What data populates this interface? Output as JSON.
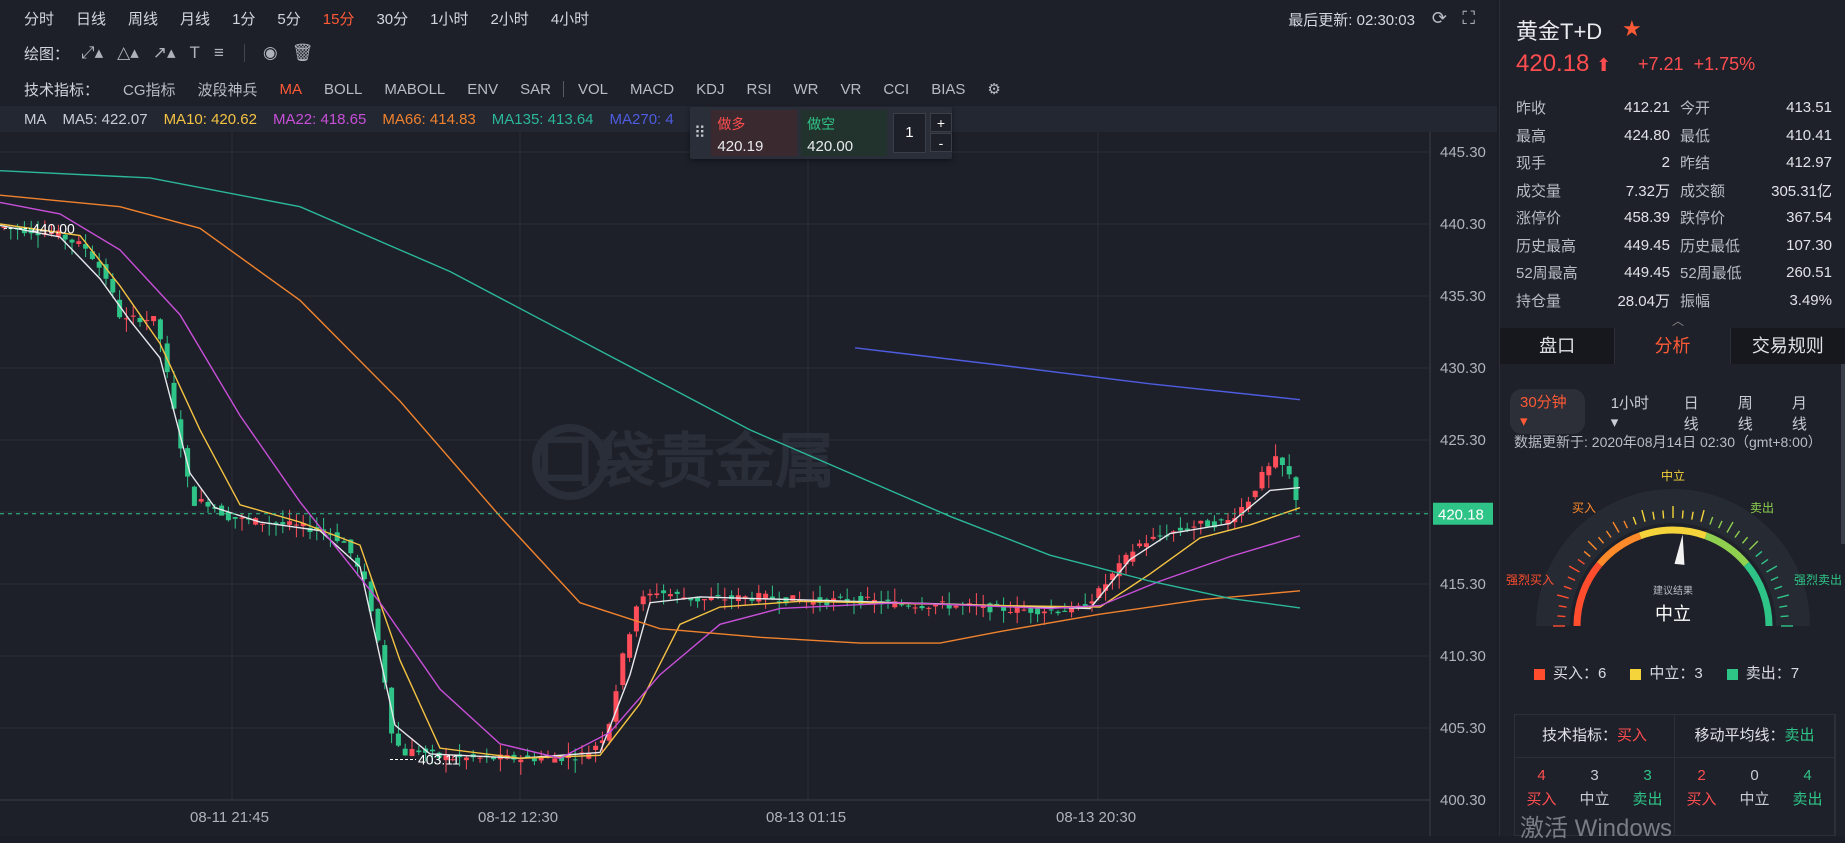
{
  "toolbar": {
    "periods": [
      "分时",
      "日线",
      "周线",
      "月线",
      "1分",
      "5分",
      "15分",
      "30分",
      "1小时",
      "2小时",
      "4小时"
    ],
    "active_period": "15分",
    "last_update_label": "最后更新: 02:30:03",
    "draw_label": "绘图：",
    "indicator_label": "技术指标：",
    "indicators": [
      "CG指标",
      "波段神兵",
      "MA",
      "BOLL",
      "MABOLL",
      "ENV",
      "SAR"
    ],
    "indicators2": [
      "VOL",
      "MACD",
      "KDJ",
      "RSI",
      "WR",
      "VR",
      "CCI",
      "BIAS"
    ],
    "active_indicator": "MA"
  },
  "ma_bar": {
    "label": "MA",
    "items": [
      {
        "text": "MA5: 422.07",
        "color": "#c9ccd4"
      },
      {
        "text": "MA10: 420.62",
        "color": "#f5c343"
      },
      {
        "text": "MA22: 418.65",
        "color": "#c84fd8"
      },
      {
        "text": "MA66: 414.83",
        "color": "#f0822e"
      },
      {
        "text": "MA135: 413.64",
        "color": "#2bb79a"
      },
      {
        "text": "MA270: 4",
        "color": "#4e5ce0"
      }
    ]
  },
  "trade": {
    "buy_label": "做多",
    "buy_price": "420.19",
    "sell_label": "做空",
    "sell_price": "420.00",
    "qty": "1",
    "plus": "+",
    "minus": "-"
  },
  "chart_data": {
    "type": "candlestick",
    "y_ticks": [
      "445.30",
      "440.30",
      "435.30",
      "430.30",
      "425.30",
      "420.30",
      "415.30",
      "410.30",
      "405.30",
      "400.30"
    ],
    "y_range": [
      400.3,
      445.3
    ],
    "x_ticks": [
      "08-11 21:45",
      "08-12 12:30",
      "08-13 01:15",
      "08-13 20:30"
    ],
    "current_price": "420.18",
    "high_marker": "440.00",
    "low_marker": "403.11",
    "watermark": "口袋贵金属",
    "colors": {
      "up": "#ff4d5a",
      "down": "#2fc487"
    }
  },
  "quote": {
    "title": "黄金T+D",
    "price": "420.18",
    "change": "+7.21",
    "change_pct": "+1.75%",
    "rows": [
      [
        "昨收",
        "412.21",
        "今开",
        "413.51"
      ],
      [
        "最高",
        "424.80",
        "最低",
        "410.41"
      ],
      [
        "现手",
        "2",
        "昨结",
        "412.97"
      ],
      [
        "成交量",
        "7.32万",
        "成交额",
        "305.31亿"
      ],
      [
        "涨停价",
        "458.39",
        "跌停价",
        "367.54"
      ],
      [
        "历史最高",
        "449.45",
        "历史最低",
        "107.30"
      ],
      [
        "52周最高",
        "449.45",
        "52周最低",
        "260.51"
      ],
      [
        "持仓量",
        "28.04万",
        "振幅",
        "3.49%"
      ]
    ]
  },
  "tabs": [
    "盘口",
    "分析",
    "交易规则"
  ],
  "active_tab": "分析",
  "analysis": {
    "periods": [
      "30分钟 ▾",
      "1小时 ▾",
      "日线",
      "周线",
      "月线"
    ],
    "updated": "数据更新于: 2020年08月14日 02:30（gmt+8:00）",
    "gauge_labels": {
      "neutral": "中立",
      "buy": "买入",
      "sell": "卖出",
      "strong_buy": "强烈买入",
      "strong_sell": "强烈卖出",
      "suggest": "建议结果",
      "result": "中立"
    },
    "legend": [
      {
        "text": "买入：6",
        "color": "#ff4d2e"
      },
      {
        "text": "中立：3",
        "color": "#f5d33a"
      },
      {
        "text": "卖出：7",
        "color": "#2fc487"
      }
    ],
    "summary": [
      {
        "header": "技术指标：",
        "verdict": "买入",
        "counts": [
          "4",
          "3",
          "3"
        ],
        "labels": [
          "买入",
          "中立",
          "卖出"
        ]
      },
      {
        "header": "移动平均线：",
        "verdict": "卖出",
        "counts": [
          "2",
          "0",
          "4"
        ],
        "labels": [
          "买入",
          "中立",
          "卖出"
        ]
      }
    ]
  },
  "os_watermark": "激活 Windows"
}
